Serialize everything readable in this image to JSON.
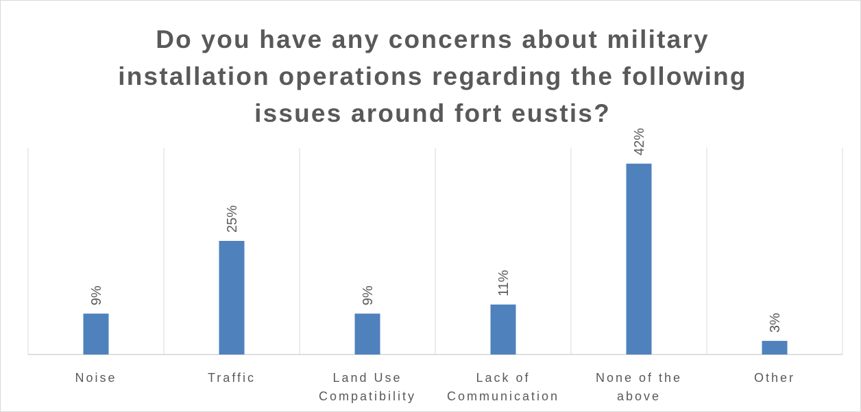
{
  "chart_data": {
    "type": "bar",
    "title": "Do you have any concerns about military installation operations regarding the following issues around fort eustis?",
    "categories": [
      "Noise",
      "Traffic",
      "Land Use Compatibility",
      "Lack of Communication",
      "None of the above",
      "Other"
    ],
    "values": [
      9,
      25,
      9,
      11,
      42,
      3
    ],
    "value_labels": [
      "9%",
      "25%",
      "9%",
      "11%",
      "42%",
      "3%"
    ],
    "color": "#4f81bd"
  }
}
